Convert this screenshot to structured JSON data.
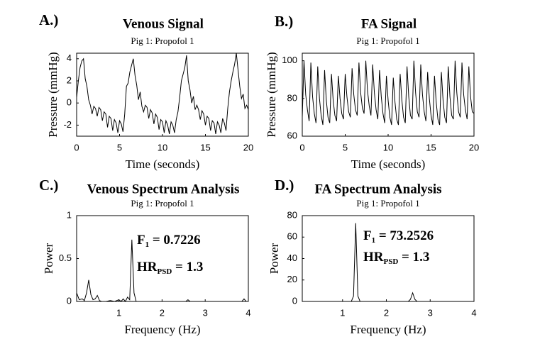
{
  "chart_data": [
    {
      "type": "line",
      "label": "A.)",
      "title": "Venous Signal",
      "subtitle": "Pig 1: Propofol 1",
      "xlabel": "Time (seconds)",
      "ylabel": "Pressure (mmHg)",
      "xlim": [
        0,
        20
      ],
      "ylim": [
        -3,
        4.5
      ],
      "xticks": [
        0,
        5,
        10,
        15,
        20
      ],
      "yticks": [
        -2,
        0,
        2,
        4
      ],
      "color": "#000000",
      "x": [
        0,
        0.2,
        0.4,
        0.6,
        0.8,
        1,
        1.2,
        1.4,
        1.6,
        1.8,
        2,
        2.2,
        2.4,
        2.6,
        2.8,
        3,
        3.2,
        3.4,
        3.6,
        3.8,
        4,
        4.2,
        4.4,
        4.6,
        4.8,
        5,
        5.2,
        5.4,
        5.6,
        5.8,
        6,
        6.2,
        6.4,
        6.6,
        6.8,
        7,
        7.2,
        7.4,
        7.6,
        7.8,
        8,
        8.2,
        8.4,
        8.6,
        8.8,
        9,
        9.2,
        9.4,
        9.6,
        9.8,
        10,
        10.2,
        10.4,
        10.6,
        10.8,
        11,
        11.2,
        11.4,
        11.6,
        11.8,
        12,
        12.2,
        12.4,
        12.6,
        12.8,
        13,
        13.2,
        13.4,
        13.6,
        13.8,
        14,
        14.2,
        14.4,
        14.6,
        14.8,
        15,
        15.2,
        15.4,
        15.6,
        15.8,
        16,
        16.2,
        16.4,
        16.6,
        16.8,
        17,
        17.2,
        17.4,
        17.6,
        17.8,
        18,
        18.2,
        18.4,
        18.6,
        18.8,
        19,
        19.2,
        19.4,
        19.6,
        19.8,
        20
      ],
      "values": [
        0.5,
        2.0,
        3.2,
        3.8,
        4.0,
        2.2,
        1.5,
        0.3,
        -0.2,
        -1.0,
        -0.3,
        -0.5,
        -1.2,
        -0.4,
        -0.6,
        -1.6,
        -0.8,
        -1.0,
        -2.2,
        -1.2,
        -1.4,
        -2.5,
        -1.5,
        -1.8,
        -2.7,
        -1.6,
        -1.9,
        -2.6,
        -1.0,
        1.5,
        1.8,
        2.8,
        3.4,
        4.0,
        2.5,
        1.6,
        0.3,
        1.0,
        -0.3,
        -0.8,
        -0.2,
        -0.4,
        -1.4,
        -0.6,
        -0.9,
        -1.9,
        -1.0,
        -1.3,
        -2.4,
        -1.5,
        -1.7,
        -2.7,
        -1.6,
        -2.0,
        -2.8,
        -1.7,
        -2.0,
        -2.7,
        -1.5,
        -0.8,
        0.5,
        2.0,
        2.6,
        3.2,
        4.3,
        2.0,
        1.2,
        0.0,
        0.6,
        -0.6,
        -0.2,
        -0.6,
        -1.5,
        -0.7,
        -1.0,
        -2.0,
        -1.2,
        -1.4,
        -2.5,
        -1.6,
        -1.8,
        -2.8,
        -1.7,
        -2.0,
        -2.7,
        -1.4,
        -1.8,
        -2.5,
        -0.5,
        1.0,
        2.0,
        2.8,
        3.5,
        4.5,
        3.0,
        1.5,
        0.4,
        0.8,
        -0.5,
        -0.2,
        -0.6
      ]
    },
    {
      "type": "line",
      "label": "B.)",
      "title": "FA Signal",
      "subtitle": "Pig 1: Propofol 1",
      "xlabel": "Time (seconds)",
      "ylabel": "Pressure (mmHg)",
      "xlim": [
        0,
        20
      ],
      "ylim": [
        60,
        104
      ],
      "xticks": [
        0,
        5,
        10,
        15,
        20
      ],
      "yticks": [
        60,
        80,
        100
      ],
      "color": "#000000",
      "x": [
        0,
        0.2,
        0.4,
        0.6,
        0.8,
        1,
        1.2,
        1.4,
        1.6,
        1.8,
        2,
        2.2,
        2.4,
        2.6,
        2.8,
        3,
        3.2,
        3.4,
        3.6,
        3.8,
        4,
        4.2,
        4.4,
        4.6,
        4.8,
        5,
        5.2,
        5.4,
        5.6,
        5.8,
        6,
        6.2,
        6.4,
        6.6,
        6.8,
        7,
        7.2,
        7.4,
        7.6,
        7.8,
        8,
        8.2,
        8.4,
        8.6,
        8.8,
        9,
        9.2,
        9.4,
        9.6,
        9.8,
        10,
        10.2,
        10.4,
        10.6,
        10.8,
        11,
        11.2,
        11.4,
        11.6,
        11.8,
        12,
        12.2,
        12.4,
        12.6,
        12.8,
        13,
        13.2,
        13.4,
        13.6,
        13.8,
        14,
        14.2,
        14.4,
        14.6,
        14.8,
        15,
        15.2,
        15.4,
        15.6,
        15.8,
        16,
        16.2,
        16.4,
        16.6,
        16.8,
        17,
        17.2,
        17.4,
        17.6,
        17.8,
        18,
        18.2,
        18.4,
        18.6,
        18.8,
        19,
        19.2,
        19.4,
        19.6,
        19.8,
        20
      ],
      "values": [
        70,
        100,
        82,
        74,
        68,
        99,
        81,
        72,
        67,
        97,
        80,
        71,
        66,
        95,
        79,
        70,
        67,
        93,
        79,
        71,
        68,
        92,
        80,
        72,
        69,
        93,
        81,
        73,
        70,
        96,
        82,
        74,
        71,
        99,
        83,
        75,
        72,
        100,
        84,
        76,
        71,
        98,
        83,
        74,
        69,
        95,
        81,
        72,
        67,
        92,
        79,
        70,
        66,
        91,
        78,
        69,
        66,
        93,
        79,
        70,
        67,
        97,
        81,
        71,
        69,
        100,
        83,
        73,
        70,
        98,
        82,
        73,
        68,
        94,
        80,
        71,
        66,
        92,
        78,
        69,
        66,
        94,
        79,
        70,
        67,
        97,
        81,
        71,
        69,
        100,
        83,
        73,
        70,
        99,
        82,
        74,
        69,
        97,
        81,
        73,
        72
      ]
    },
    {
      "type": "line",
      "label": "C.)",
      "title": "Venous Spectrum Analysis",
      "subtitle": "Pig 1: Propofol 1",
      "xlabel": "Frequency (Hz)",
      "ylabel": "Power",
      "xlim": [
        0.02,
        4
      ],
      "ylim": [
        0,
        1
      ],
      "xticks": [
        1,
        2,
        3,
        4
      ],
      "yticks": [
        0,
        0.5,
        1
      ],
      "color": "#000000",
      "annotations": [
        {
          "main": "F",
          "sub": "1",
          "tail": " = 0.7226"
        },
        {
          "main": "HR",
          "sub": "PSD",
          "tail": " = 1.3"
        }
      ],
      "x": [
        0.02,
        0.08,
        0.15,
        0.2,
        0.25,
        0.3,
        0.35,
        0.4,
        0.45,
        0.5,
        0.55,
        0.6,
        0.7,
        0.8,
        0.9,
        1.0,
        1.05,
        1.1,
        1.15,
        1.2,
        1.25,
        1.3,
        1.35,
        1.4,
        1.5,
        1.7,
        2.0,
        2.3,
        2.55,
        2.6,
        2.65,
        3.0,
        3.5,
        3.85,
        3.9,
        3.95,
        4.0
      ],
      "values": [
        0.1,
        0.02,
        0.03,
        0.01,
        0.1,
        0.25,
        0.08,
        0.02,
        0.03,
        0.07,
        0.01,
        0,
        0,
        0.01,
        0,
        0.02,
        0,
        0.03,
        0,
        0.05,
        0.02,
        0.72,
        0.1,
        0,
        0,
        0,
        0,
        0,
        0,
        0.02,
        0,
        0,
        0,
        0,
        0.03,
        0,
        0
      ]
    },
    {
      "type": "line",
      "label": "D.)",
      "title": "FA Spectrum Analysis",
      "subtitle": "Pig 1: Propofol 1",
      "xlabel": "Frequency (Hz)",
      "ylabel": "Power",
      "xlim": [
        0.08,
        4
      ],
      "ylim": [
        0,
        80
      ],
      "xticks": [
        1,
        2,
        3,
        4
      ],
      "yticks": [
        0,
        20,
        40,
        60,
        80
      ],
      "color": "#000000",
      "annotations": [
        {
          "main": "F",
          "sub": "1",
          "tail": " = 73.2526"
        },
        {
          "main": "HR",
          "sub": "PSD",
          "tail": " = 1.3"
        }
      ],
      "x": [
        0.08,
        0.5,
        1.0,
        1.2,
        1.25,
        1.3,
        1.35,
        1.4,
        1.6,
        2.0,
        2.5,
        2.55,
        2.6,
        2.65,
        2.7,
        3.0,
        3.5,
        4.0
      ],
      "values": [
        0,
        0,
        0,
        0,
        5,
        73,
        5,
        0,
        0,
        0,
        0,
        2,
        8,
        2,
        0,
        0,
        0,
        0
      ]
    }
  ]
}
